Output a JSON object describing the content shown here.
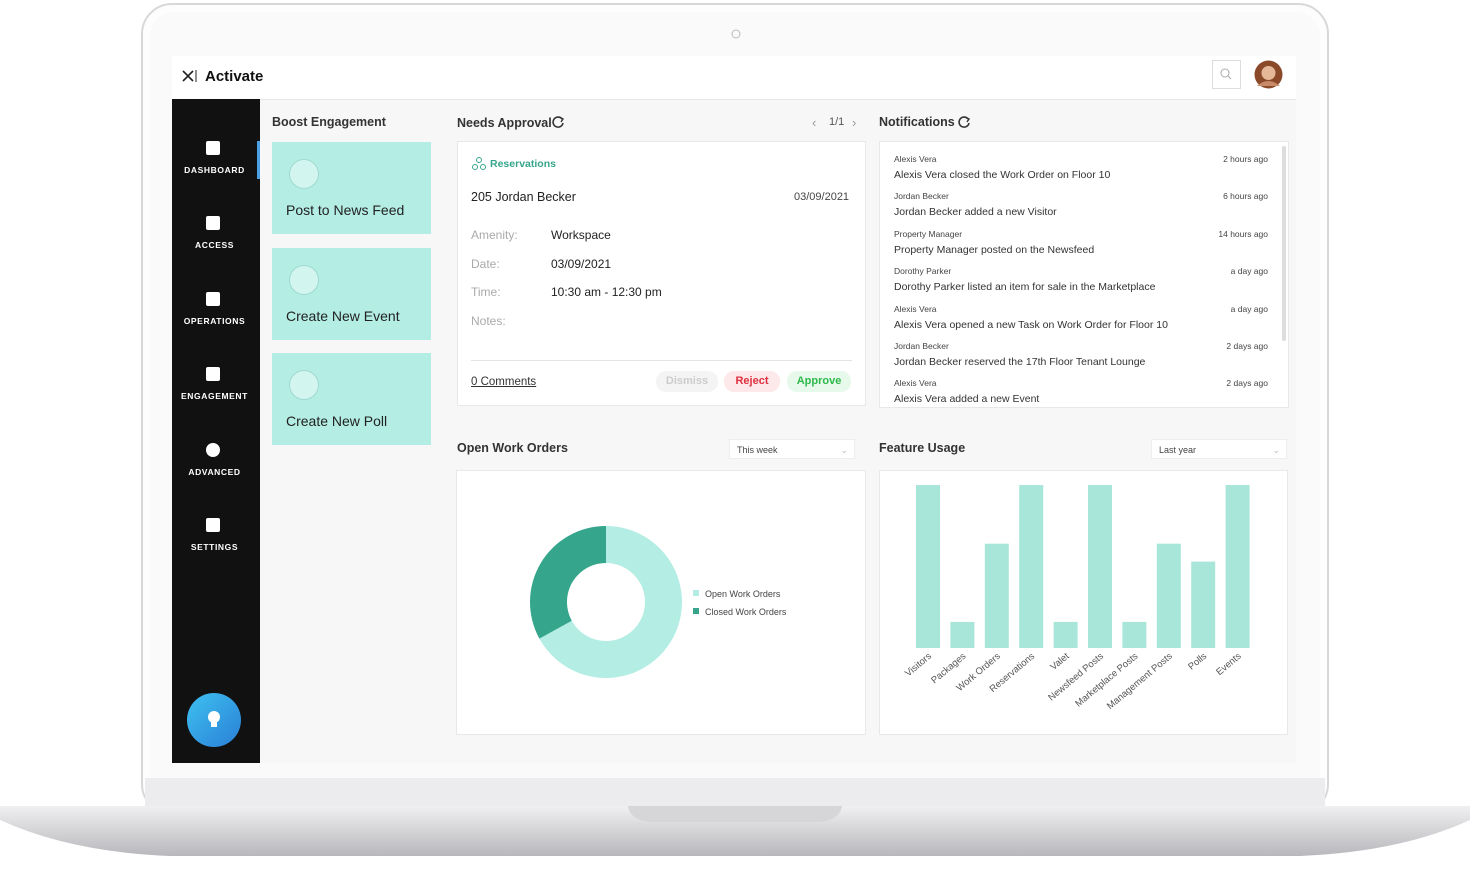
{
  "header": {
    "brand": "Activate"
  },
  "sidebar": {
    "items": [
      "DASHBOARD",
      "ACCESS",
      "OPERATIONS",
      "ENGAGEMENT",
      "ADVANCED",
      "SETTINGS"
    ]
  },
  "boost": {
    "title": "Boost Engagement",
    "actions": [
      "Post to News Feed",
      "Create New Event",
      "Create New Poll"
    ]
  },
  "approval": {
    "title": "Needs Approval",
    "pager": "1/1",
    "category": "Reservations",
    "heading": "205 Jordan Becker",
    "date": "03/09/2021",
    "fields": [
      [
        "Amenity:",
        "Workspace"
      ],
      [
        "Date:",
        "03/09/2021"
      ],
      [
        "Time:",
        "10:30 am - 12:30 pm"
      ],
      [
        "Notes:"
      ]
    ],
    "comments": "0 Comments",
    "buttons": [
      "Dismiss",
      "Reject",
      "Approve"
    ]
  },
  "notifications": {
    "title": "Notifications",
    "items": [
      {
        "author": "Alexis Vera",
        "time": "2 hours ago",
        "text": "Alexis Vera closed the Work Order on Floor 10"
      },
      {
        "author": "Jordan Becker",
        "time": "6 hours ago",
        "text": "Jordan Becker added a new Visitor"
      },
      {
        "author": "Property Manager",
        "time": "14 hours ago",
        "text": "Property Manager posted on the Newsfeed"
      },
      {
        "author": "Dorothy Parker",
        "time": "a day ago",
        "text": "Dorothy Parker listed an item for sale in the Marketplace"
      },
      {
        "author": "Alexis Vera",
        "time": "a day ago",
        "text": "Alexis Vera opened a new Task on Work Order for Floor 10"
      },
      {
        "author": "Jordan Becker",
        "time": "2 days ago",
        "text": "Jordan Becker reserved the 17th Floor Tenant Lounge"
      },
      {
        "author": "Alexis Vera",
        "time": "2 days ago",
        "text": "Alexis Vera added a new Event"
      }
    ]
  },
  "filters": [
    "This week",
    "Last year"
  ],
  "chart_data": [
    {
      "type": "donut",
      "title": "Open Work Orders",
      "series": [
        {
          "name": "Open Work Orders",
          "color": "#b3ede3"
        },
        {
          "name": "Closed Work Orders",
          "color": "#35a68c"
        }
      ],
      "values": [
        67,
        33
      ]
    },
    {
      "type": "bar",
      "title": "Feature Usage",
      "color": "#a8e6da",
      "categories": [
        "Visitors",
        "Packages",
        "Work Orders",
        "Reservations",
        "Valet",
        "Newsfeed Posts",
        "Marketplace Posts",
        "Management Posts",
        "Polls",
        "Events"
      ],
      "values": [
        100,
        16,
        64,
        100,
        16,
        100,
        16,
        64,
        53,
        100
      ]
    }
  ]
}
